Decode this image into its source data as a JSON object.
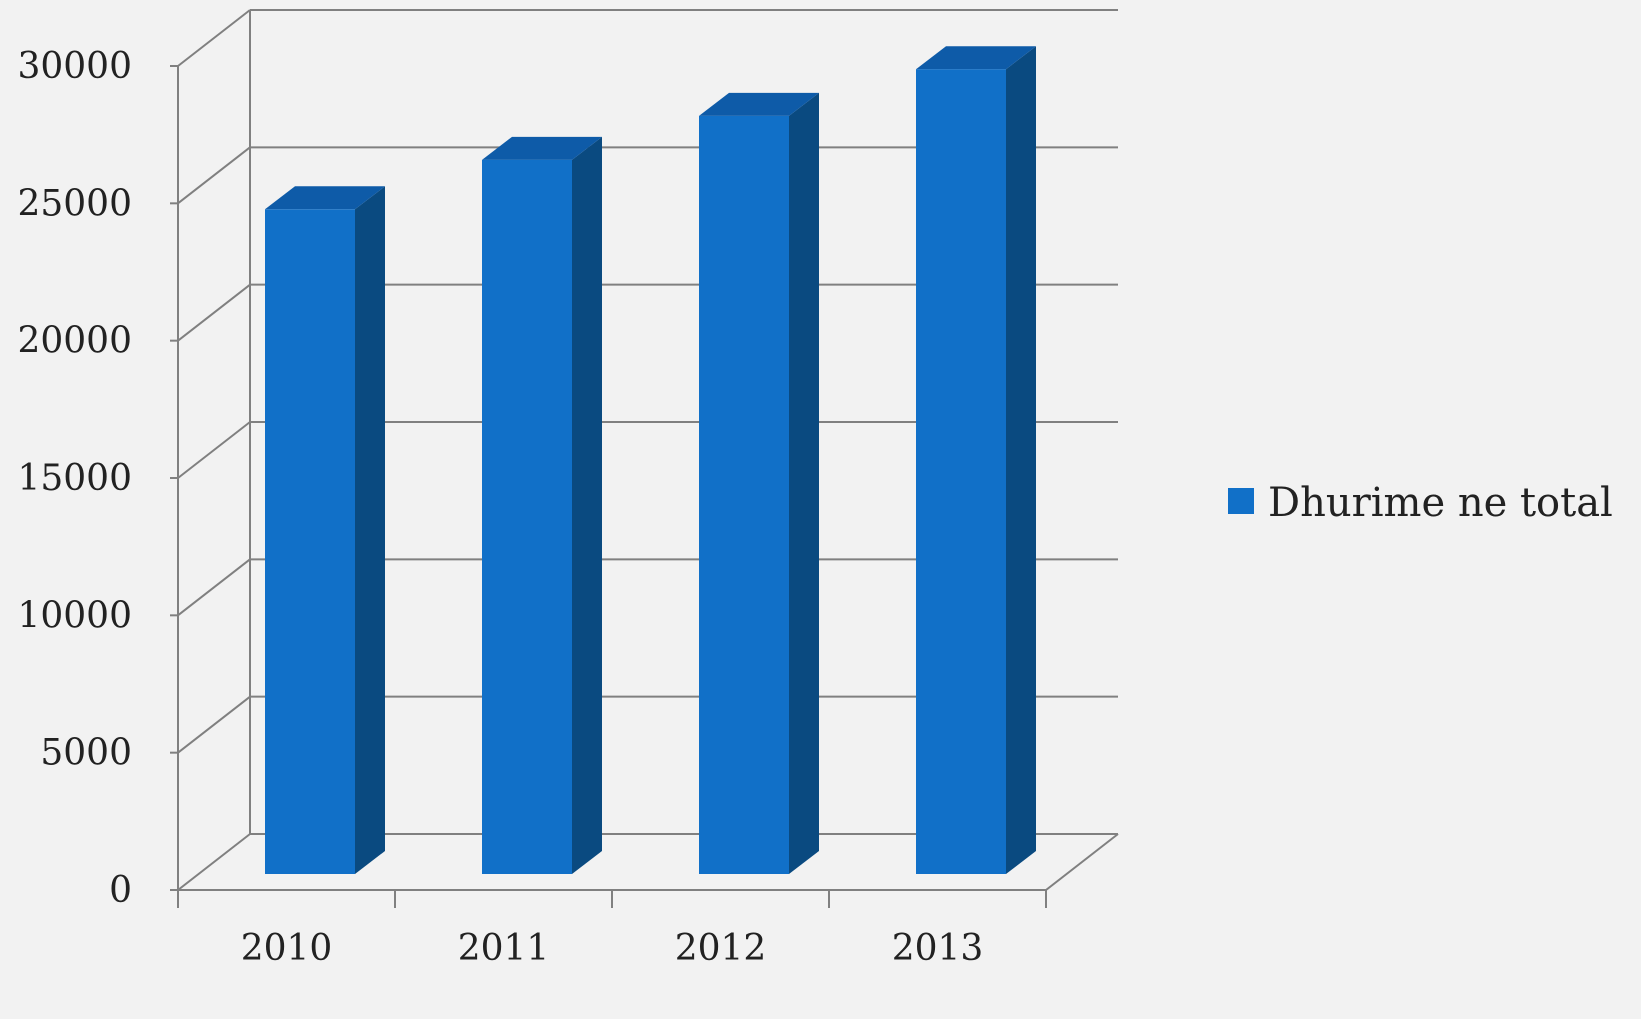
{
  "chart_data": {
    "type": "bar",
    "style": "3d-column",
    "categories": [
      "2010",
      "2011",
      "2012",
      "2013"
    ],
    "series": [
      {
        "name": "Dhurime ne total",
        "values": [
          24200,
          26000,
          27600,
          29300
        ]
      }
    ],
    "ylim": [
      0,
      30000
    ],
    "yticks": [
      0,
      5000,
      10000,
      15000,
      20000,
      25000,
      30000
    ],
    "ytick_labels": [
      "0",
      "5000",
      "10000",
      "15000",
      "20000",
      "25000",
      "30000"
    ],
    "grid": true,
    "legend_position": "right",
    "colors": {
      "bar_front": "#1170c8",
      "bar_top": "#0e5ba8",
      "bar_side": "#0a4a80",
      "grid": "#808080"
    }
  }
}
